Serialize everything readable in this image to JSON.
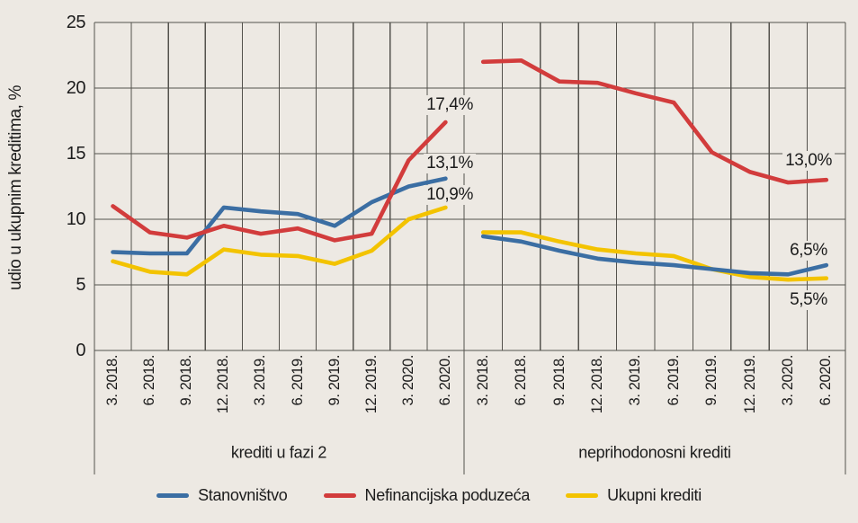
{
  "chart": {
    "y_axis_title": "udio u ukupnim kreditima, %",
    "background_color": "#EDE9E3",
    "grid_color": "#54524D",
    "text_color": "#1C1C1C",
    "y_ticks": [
      0,
      5,
      10,
      15,
      20,
      25
    ]
  },
  "legend": {
    "items": [
      {
        "label": "Stanovništvo",
        "color": "#3B6EA3"
      },
      {
        "label": "Nefinancijska poduzeća",
        "color": "#D23C3C"
      },
      {
        "label": "Ukupni krediti",
        "color": "#F3C300"
      }
    ]
  },
  "chart_data": {
    "type": "line",
    "title": "",
    "ylabel": "udio u ukupnim kreditima, %",
    "ylim": [
      0,
      25
    ],
    "grid": true,
    "legend_position": "bottom",
    "categories": [
      "3. 2018.",
      "6. 2018.",
      "9. 2018.",
      "12. 2018.",
      "3. 2019.",
      "6. 2019.",
      "9. 2019.",
      "12. 2019.",
      "3. 2020.",
      "6. 2020."
    ],
    "panels": [
      {
        "caption": "krediti u fazi 2",
        "series": [
          {
            "name": "Stanovništvo",
            "color": "#3B6EA3",
            "values": [
              7.5,
              7.4,
              7.4,
              10.9,
              10.6,
              10.4,
              9.5,
              11.3,
              12.5,
              13.1
            ],
            "end_label": "13,1%"
          },
          {
            "name": "Nefinancijska poduzeća",
            "color": "#D23C3C",
            "values": [
              11.0,
              9.0,
              8.6,
              9.5,
              8.9,
              9.3,
              8.4,
              8.9,
              14.5,
              17.4
            ],
            "end_label": "17,4%"
          },
          {
            "name": "Ukupni krediti",
            "color": "#F3C300",
            "values": [
              6.8,
              6.0,
              5.8,
              7.7,
              7.3,
              7.2,
              6.6,
              7.6,
              10.0,
              10.9
            ],
            "end_label": "10,9%"
          }
        ]
      },
      {
        "caption": "neprihodonosni krediti",
        "series": [
          {
            "name": "Stanovništvo",
            "color": "#3B6EA3",
            "values": [
              8.7,
              8.3,
              7.6,
              7.0,
              6.7,
              6.5,
              6.2,
              5.9,
              5.8,
              6.5
            ],
            "end_label": "6,5%"
          },
          {
            "name": "Nefinancijska poduzeća",
            "color": "#D23C3C",
            "values": [
              22.0,
              22.1,
              20.5,
              20.4,
              19.6,
              18.9,
              15.1,
              13.6,
              12.8,
              13.0
            ],
            "end_label": "13,0%"
          },
          {
            "name": "Ukupni krediti",
            "color": "#F3C300",
            "values": [
              9.0,
              9.0,
              8.3,
              7.7,
              7.4,
              7.2,
              6.2,
              5.6,
              5.4,
              5.5
            ],
            "end_label": "5,5%"
          }
        ]
      }
    ]
  }
}
